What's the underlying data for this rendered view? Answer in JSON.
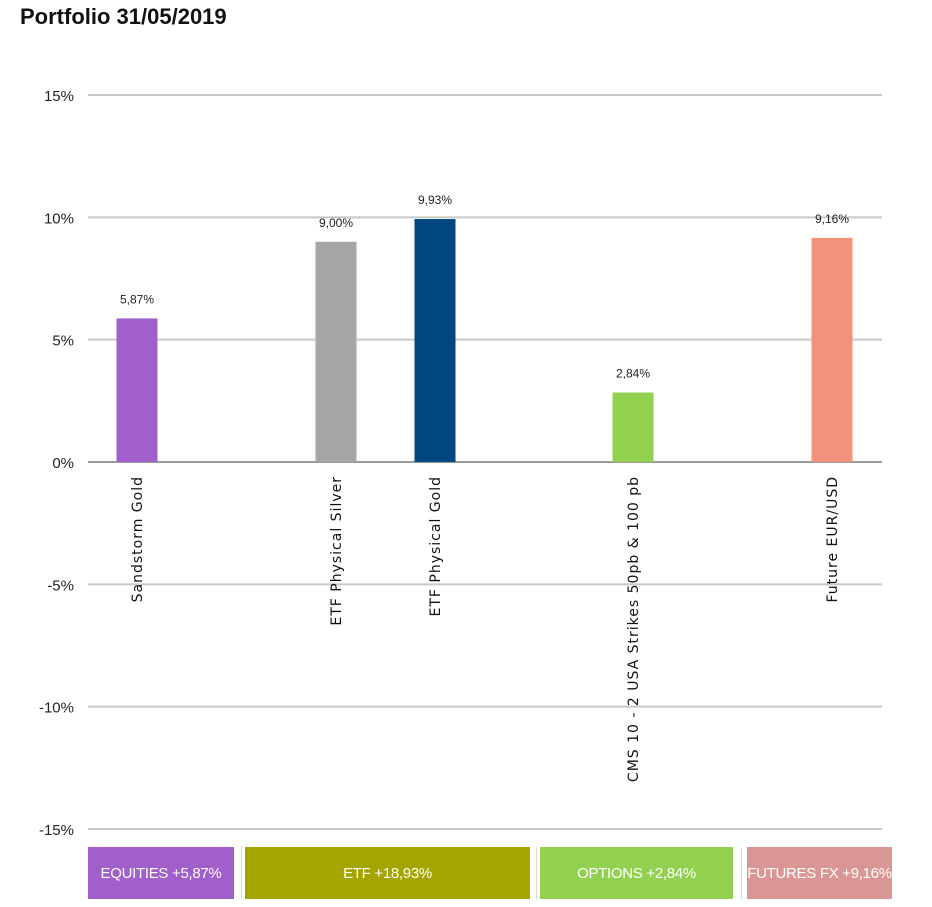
{
  "title": "Portfolio 31/05/2019",
  "chart_data": {
    "type": "bar",
    "categories": [
      "Sandstorm Gold",
      "ETF Physical Silver",
      "ETF Physical Gold",
      "CMS 10 - 2 USA Strikes 50pb & 100 pb",
      "Future EUR/USD"
    ],
    "values": [
      5.87,
      9.0,
      9.93,
      2.84,
      9.16
    ],
    "data_labels": [
      "5,87%",
      "9,00%",
      "9,93%",
      "2,84%",
      "9,16%"
    ],
    "colors": [
      "#a05fcb",
      "#a6a6a6",
      "#004680",
      "#92d050",
      "#f4917b"
    ],
    "ylim": [
      -15,
      15
    ],
    "yticks": [
      15,
      10,
      5,
      0,
      -5,
      -10,
      -15
    ],
    "ytick_labels": [
      "15%",
      "10%",
      "5%",
      "0%",
      "-5%",
      "-10%",
      "-15%"
    ],
    "grid": true,
    "xlabel": "",
    "ylabel": ""
  },
  "legend": [
    {
      "label": "EQUITIES +5,87%",
      "color": "#a05fcb"
    },
    {
      "label": "ETF +18,93%",
      "color": "#a5a500"
    },
    {
      "label": "OPTIONS +2,84%",
      "color": "#92d050"
    },
    {
      "label": "FUTURES FX +9,16%",
      "color": "#d99694"
    }
  ]
}
